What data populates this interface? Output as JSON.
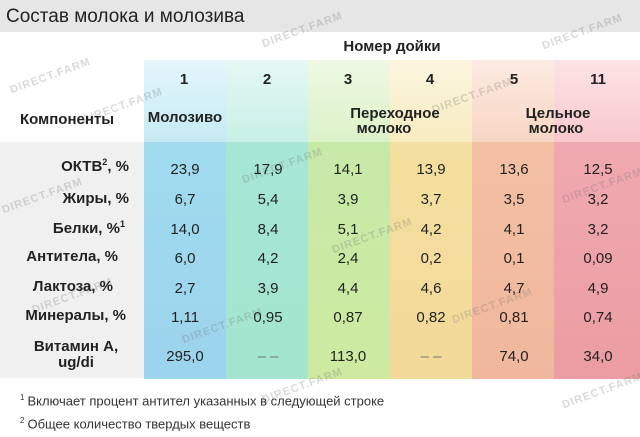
{
  "title": "Состав молока и молозива",
  "header": {
    "milking_label": "Номер дойки",
    "component_label": "Компоненты",
    "milking_numbers": [
      "1",
      "2",
      "3",
      "4",
      "5",
      "11"
    ],
    "categories": {
      "colostrum": "Молозиво",
      "transitional_line1": "Переходное",
      "transitional_line2": "молоко",
      "whole_line1": "Цельное",
      "whole_line2": "молоко"
    }
  },
  "rows": [
    {
      "label": "ОКТВ",
      "sup": "2",
      "unit": ", %",
      "values": [
        "23,9",
        "17,9",
        "14,1",
        "13,9",
        "13,6",
        "12,5"
      ]
    },
    {
      "label": "Жиры, %",
      "sup": "",
      "unit": "",
      "values": [
        "6,7",
        "5,4",
        "3,9",
        "3,7",
        "3,5",
        "3,2"
      ]
    },
    {
      "label": "Белки, %",
      "sup": "1",
      "unit": "",
      "values": [
        "14,0",
        "8,4",
        "5,1",
        "4,2",
        "4,1",
        "3,2"
      ]
    },
    {
      "label": "Антитела, %",
      "sup": "",
      "unit": "",
      "values": [
        "6,0",
        "4,2",
        "2,4",
        "0,2",
        "0,1",
        "0,09"
      ]
    },
    {
      "label": "Лактоза, %",
      "sup": "",
      "unit": "",
      "values": [
        "2,7",
        "3,9",
        "4,4",
        "4,6",
        "4,7",
        "4,9"
      ]
    },
    {
      "label": "Минералы, %",
      "sup": "",
      "unit": "",
      "values": [
        "1,11",
        "0,95",
        "0,87",
        "0,82",
        "0,81",
        "0,74"
      ]
    },
    {
      "label": "Витамин А,",
      "label2": "ug/di",
      "sup": "",
      "unit": "",
      "values": [
        "295,0",
        "– –",
        "113,0",
        "– –",
        "74,0",
        "34,0"
      ]
    }
  ],
  "footnotes": [
    {
      "mark": "1",
      "text": "Включает процент антител указанных в следующей строке"
    },
    {
      "mark": "2",
      "text": "Общее количество твердых веществ"
    }
  ],
  "watermark": "DIRECT.FARM",
  "colors": {
    "title_bar": "#e6e6e6",
    "row_band": "#f0f0f0",
    "col1": "#9cd3ed",
    "col2": "#a3e5ce",
    "col3": "#cdeaa0",
    "col4": "#f3d99a",
    "col5": "#f0b79c",
    "col6": "#ec9ca3"
  }
}
